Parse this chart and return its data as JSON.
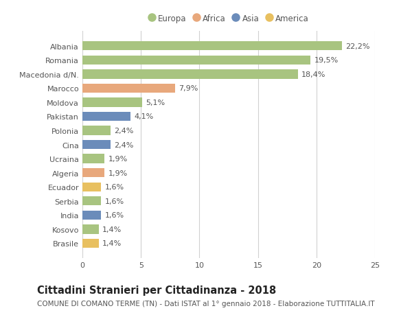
{
  "countries": [
    "Albania",
    "Romania",
    "Macedonia d/N.",
    "Marocco",
    "Moldova",
    "Pakistan",
    "Polonia",
    "Cina",
    "Ucraina",
    "Algeria",
    "Ecuador",
    "Serbia",
    "India",
    "Kosovo",
    "Brasile"
  ],
  "values": [
    22.2,
    19.5,
    18.4,
    7.9,
    5.1,
    4.1,
    2.4,
    2.4,
    1.9,
    1.9,
    1.6,
    1.6,
    1.6,
    1.4,
    1.4
  ],
  "labels": [
    "22,2%",
    "19,5%",
    "18,4%",
    "7,9%",
    "5,1%",
    "4,1%",
    "2,4%",
    "2,4%",
    "1,9%",
    "1,9%",
    "1,6%",
    "1,6%",
    "1,6%",
    "1,4%",
    "1,4%"
  ],
  "continents": [
    "Europa",
    "Europa",
    "Europa",
    "Africa",
    "Europa",
    "Asia",
    "Europa",
    "Asia",
    "Europa",
    "Africa",
    "America",
    "Europa",
    "Asia",
    "Europa",
    "America"
  ],
  "colors": {
    "Europa": "#a8c480",
    "Africa": "#e8a87c",
    "Asia": "#6b8cba",
    "America": "#e8c060"
  },
  "legend_order": [
    "Europa",
    "Africa",
    "Asia",
    "America"
  ],
  "xlim": [
    0,
    25
  ],
  "xticks": [
    0,
    5,
    10,
    15,
    20,
    25
  ],
  "title": "Cittadini Stranieri per Cittadinanza - 2018",
  "subtitle": "COMUNE DI COMANO TERME (TN) - Dati ISTAT al 1° gennaio 2018 - Elaborazione TUTTITALIA.IT",
  "bg_color": "#ffffff",
  "grid_color": "#d0d0d0",
  "bar_height": 0.65,
  "title_fontsize": 10.5,
  "subtitle_fontsize": 7.5,
  "tick_fontsize": 8,
  "label_fontsize": 8,
  "legend_fontsize": 8.5
}
